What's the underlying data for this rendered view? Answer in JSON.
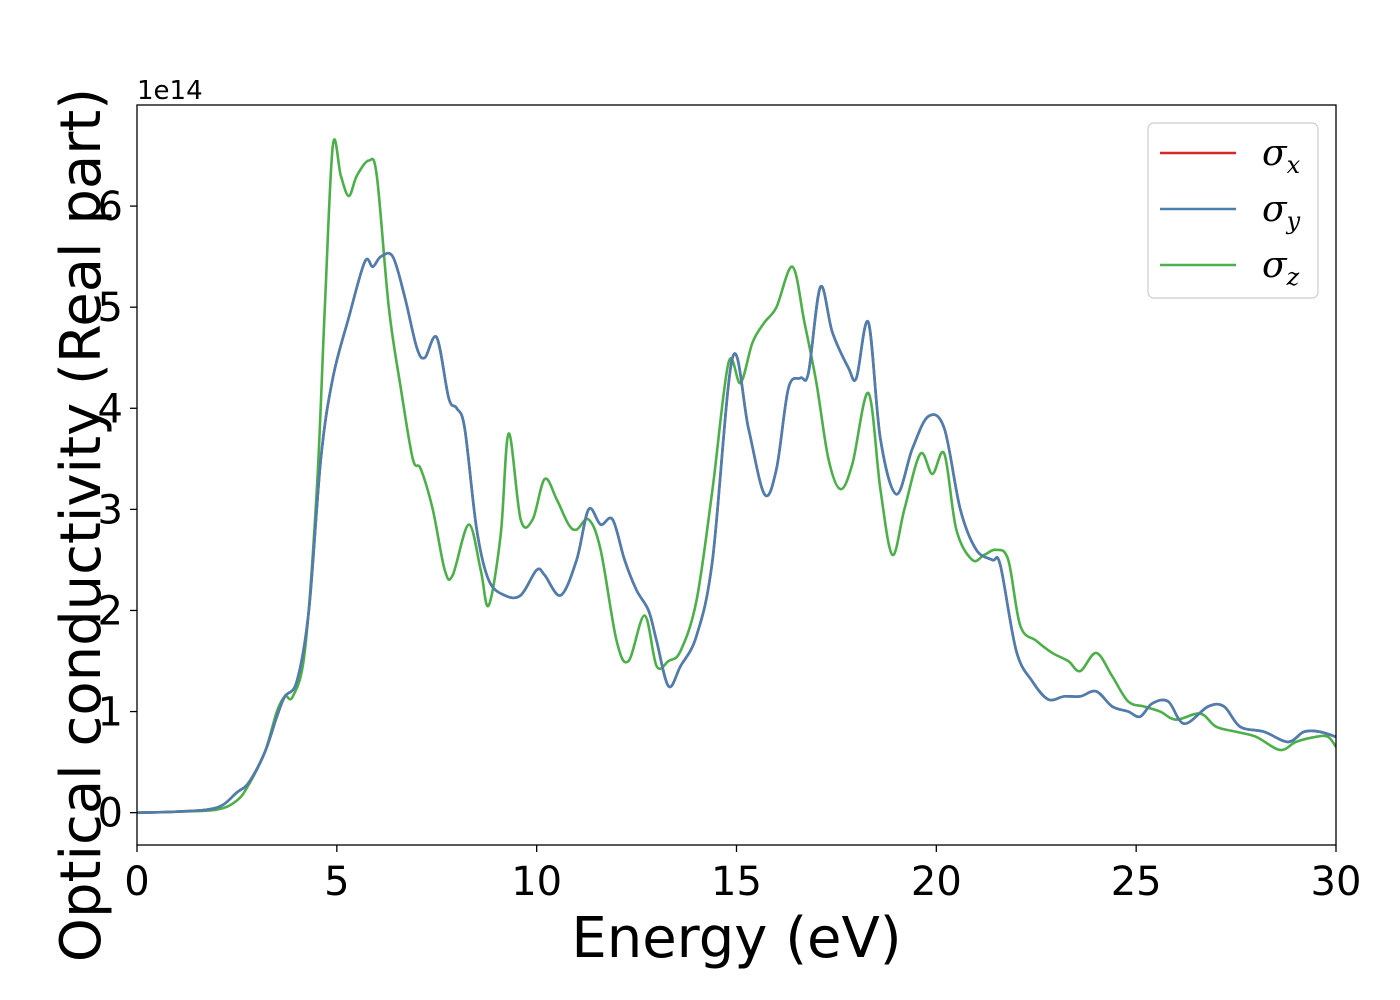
{
  "chart_data": {
    "type": "line",
    "xlabel": "Energy (eV)",
    "ylabel": "Optical conductivity (Real part)",
    "y_offset_label": "1e14",
    "xlim": [
      0,
      30
    ],
    "ylim": [
      -0.32,
      7.0
    ],
    "xticks": [
      "0",
      "5",
      "10",
      "15",
      "20",
      "25",
      "30"
    ],
    "yticks": [
      "0",
      "1",
      "2",
      "3",
      "4",
      "5",
      "6"
    ],
    "grid": false,
    "legend_position": "top-right",
    "series": [
      {
        "name": "σ_x",
        "legend_symbol": "σ",
        "legend_subscript": "x",
        "color": "#d62728",
        "x": [
          0,
          1,
          2,
          2.5,
          2.8,
          3.2,
          3.5,
          3.7,
          4.0,
          4.3,
          4.6,
          4.9,
          5.3,
          5.7,
          5.9,
          6.1,
          6.4,
          6.7,
          7.0,
          7.2,
          7.5,
          7.8,
          8.0,
          8.2,
          8.5,
          8.8,
          9.2,
          9.6,
          10.0,
          10.2,
          10.6,
          11.0,
          11.3,
          11.6,
          11.9,
          12.2,
          12.5,
          12.8,
          13.0,
          13.3,
          13.6,
          14.0,
          14.4,
          14.9,
          15.3,
          15.7,
          16.0,
          16.3,
          16.6,
          16.8,
          17.1,
          17.4,
          17.8,
          18.0,
          18.3,
          18.6,
          19.0,
          19.4,
          19.8,
          20.2,
          20.6,
          21.0,
          21.4,
          21.6,
          22.0,
          22.4,
          22.8,
          23.2,
          23.6,
          24.0,
          24.4,
          24.8,
          25.1,
          25.4,
          25.8,
          26.2,
          26.8,
          27.2,
          27.6,
          28.2,
          28.8,
          29.2,
          29.6,
          30.0
        ],
        "y": [
          0.0,
          0.01,
          0.05,
          0.2,
          0.3,
          0.6,
          0.95,
          1.15,
          1.3,
          2.0,
          3.5,
          4.3,
          4.9,
          5.45,
          5.4,
          5.5,
          5.5,
          5.1,
          4.6,
          4.5,
          4.7,
          4.1,
          4.0,
          3.8,
          2.8,
          2.3,
          2.15,
          2.15,
          2.4,
          2.35,
          2.15,
          2.5,
          3.0,
          2.85,
          2.9,
          2.5,
          2.2,
          2.0,
          1.7,
          1.25,
          1.45,
          1.75,
          2.5,
          4.5,
          3.8,
          3.15,
          3.4,
          4.2,
          4.3,
          4.35,
          5.2,
          4.75,
          4.4,
          4.3,
          4.85,
          3.7,
          3.15,
          3.6,
          3.92,
          3.8,
          3.0,
          2.6,
          2.5,
          2.45,
          1.6,
          1.3,
          1.12,
          1.15,
          1.15,
          1.2,
          1.05,
          1.0,
          0.95,
          1.08,
          1.1,
          0.88,
          1.05,
          1.05,
          0.85,
          0.8,
          0.7,
          0.8,
          0.8,
          0.75
        ]
      },
      {
        "name": "σ_y",
        "legend_symbol": "σ",
        "legend_subscript": "y",
        "color": "#4a7fb0",
        "x": [
          0,
          1,
          2,
          2.5,
          2.8,
          3.2,
          3.5,
          3.7,
          4.0,
          4.3,
          4.6,
          4.9,
          5.3,
          5.7,
          5.9,
          6.1,
          6.4,
          6.7,
          7.0,
          7.2,
          7.5,
          7.8,
          8.0,
          8.2,
          8.5,
          8.8,
          9.2,
          9.6,
          10.0,
          10.2,
          10.6,
          11.0,
          11.3,
          11.6,
          11.9,
          12.2,
          12.5,
          12.8,
          13.0,
          13.3,
          13.6,
          14.0,
          14.4,
          14.9,
          15.3,
          15.7,
          16.0,
          16.3,
          16.6,
          16.8,
          17.1,
          17.4,
          17.8,
          18.0,
          18.3,
          18.6,
          19.0,
          19.4,
          19.8,
          20.2,
          20.6,
          21.0,
          21.4,
          21.6,
          22.0,
          22.4,
          22.8,
          23.2,
          23.6,
          24.0,
          24.4,
          24.8,
          25.1,
          25.4,
          25.8,
          26.2,
          26.8,
          27.2,
          27.6,
          28.2,
          28.8,
          29.2,
          29.6,
          30.0
        ],
        "y": [
          0.0,
          0.01,
          0.05,
          0.2,
          0.3,
          0.6,
          0.95,
          1.15,
          1.3,
          2.0,
          3.5,
          4.3,
          4.9,
          5.45,
          5.4,
          5.5,
          5.5,
          5.1,
          4.6,
          4.5,
          4.7,
          4.1,
          4.0,
          3.8,
          2.8,
          2.3,
          2.15,
          2.15,
          2.4,
          2.35,
          2.15,
          2.5,
          3.0,
          2.85,
          2.9,
          2.5,
          2.2,
          2.0,
          1.7,
          1.25,
          1.45,
          1.75,
          2.5,
          4.5,
          3.8,
          3.15,
          3.4,
          4.2,
          4.3,
          4.35,
          5.2,
          4.75,
          4.4,
          4.3,
          4.85,
          3.7,
          3.15,
          3.6,
          3.92,
          3.8,
          3.0,
          2.6,
          2.5,
          2.45,
          1.6,
          1.3,
          1.12,
          1.15,
          1.15,
          1.2,
          1.05,
          1.0,
          0.95,
          1.08,
          1.1,
          0.88,
          1.05,
          1.05,
          0.85,
          0.8,
          0.7,
          0.8,
          0.8,
          0.75
        ]
      },
      {
        "name": "σ_z",
        "legend_symbol": "σ",
        "legend_subscript": "z",
        "color": "#4daf4a",
        "x": [
          0,
          1,
          2,
          2.5,
          2.8,
          3.2,
          3.5,
          3.7,
          3.9,
          4.2,
          4.5,
          4.7,
          4.9,
          5.1,
          5.3,
          5.5,
          5.8,
          6.0,
          6.3,
          6.6,
          6.9,
          7.1,
          7.4,
          7.7,
          7.9,
          8.3,
          8.6,
          8.8,
          9.1,
          9.3,
          9.6,
          9.9,
          10.2,
          10.5,
          10.8,
          11.0,
          11.3,
          11.6,
          12.0,
          12.3,
          12.7,
          13.0,
          13.3,
          13.6,
          14.0,
          14.4,
          14.8,
          15.1,
          15.4,
          15.7,
          16.0,
          16.4,
          16.7,
          17.0,
          17.3,
          17.6,
          17.9,
          18.3,
          18.6,
          18.9,
          19.2,
          19.6,
          19.9,
          20.2,
          20.5,
          20.9,
          21.2,
          21.5,
          21.8,
          22.1,
          22.5,
          22.9,
          23.3,
          23.6,
          24.0,
          24.4,
          24.8,
          25.2,
          25.6,
          26.0,
          26.6,
          27.0,
          27.5,
          28.0,
          28.6,
          29.0,
          29.5,
          29.8,
          30.0
        ],
        "y": [
          0.0,
          0.01,
          0.03,
          0.12,
          0.28,
          0.6,
          1.0,
          1.15,
          1.15,
          1.6,
          3.2,
          5.0,
          6.6,
          6.3,
          6.1,
          6.3,
          6.45,
          6.3,
          5.0,
          4.2,
          3.5,
          3.4,
          3.0,
          2.4,
          2.35,
          2.85,
          2.4,
          2.05,
          2.75,
          3.75,
          2.9,
          2.9,
          3.3,
          3.1,
          2.85,
          2.8,
          2.9,
          2.6,
          1.7,
          1.5,
          1.95,
          1.45,
          1.5,
          1.6,
          2.1,
          3.2,
          4.45,
          4.25,
          4.65,
          4.85,
          5.0,
          5.4,
          4.85,
          4.25,
          3.5,
          3.2,
          3.45,
          4.15,
          3.2,
          2.55,
          3.0,
          3.55,
          3.35,
          3.55,
          2.8,
          2.5,
          2.55,
          2.6,
          2.5,
          1.85,
          1.7,
          1.58,
          1.5,
          1.4,
          1.58,
          1.35,
          1.1,
          1.05,
          1.0,
          0.92,
          0.98,
          0.85,
          0.8,
          0.75,
          0.62,
          0.7,
          0.75,
          0.75,
          0.65
        ]
      }
    ]
  }
}
